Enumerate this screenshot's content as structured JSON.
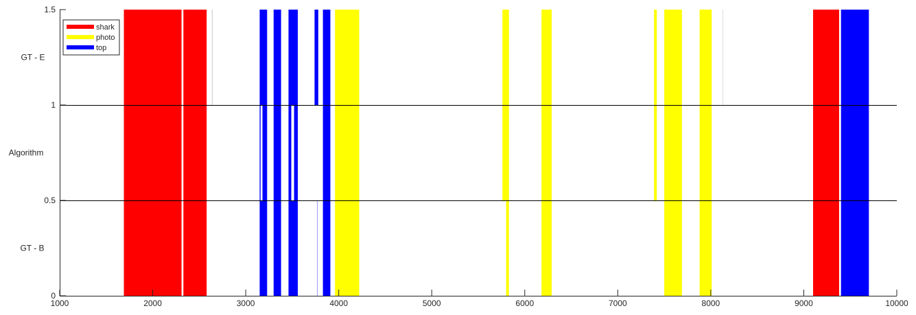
{
  "chart_data": {
    "type": "bar",
    "xlim": [
      1000,
      10000
    ],
    "ylim": [
      0,
      1.5
    ],
    "x_ticks": [
      "1000",
      "2000",
      "3000",
      "4000",
      "5000",
      "6000",
      "7000",
      "8000",
      "9000",
      "10000"
    ],
    "y_ticks": [
      "0",
      "0.5",
      "1",
      "1.5"
    ],
    "row_labels": [
      "GT - E",
      "Algorithm",
      "GT - B"
    ],
    "row_boundaries": [
      0.5,
      1
    ],
    "grid": false,
    "legend": {
      "placement": "top-left",
      "entries": [
        {
          "name": "shark",
          "color": "#ff0000"
        },
        {
          "name": "photo",
          "color": "#ffff00"
        },
        {
          "name": "top",
          "color": "#0000ff"
        }
      ]
    },
    "colors": {
      "shark": "#ff0000",
      "photo": "#ffff00",
      "top": "#0000ff"
    },
    "series": [
      {
        "name": "shark",
        "segments": [
          {
            "y0": 0,
            "y1": 1.5,
            "x0": 1690,
            "x1": 2310
          },
          {
            "y0": 0,
            "y1": 1.5,
            "x0": 2330,
            "x1": 2580
          },
          {
            "y0": 0,
            "y1": 1.5,
            "x0": 9100,
            "x1": 9380
          }
        ]
      },
      {
        "name": "photo",
        "segments": [
          {
            "y0": 0,
            "y1": 1.5,
            "x0": 3960,
            "x1": 4010
          },
          {
            "y0": 0,
            "y1": 1.5,
            "x0": 4010,
            "x1": 4220
          },
          {
            "y0": 0.5,
            "y1": 1.5,
            "x0": 5760,
            "x1": 5830
          },
          {
            "y0": 0,
            "y1": 0.5,
            "x0": 5800,
            "x1": 5830
          },
          {
            "y0": 0,
            "y1": 1.5,
            "x0": 6180,
            "x1": 6290
          },
          {
            "y0": 0.5,
            "y1": 1.5,
            "x0": 7390,
            "x1": 7420
          },
          {
            "y0": 0,
            "y1": 1.5,
            "x0": 7500,
            "x1": 7690
          },
          {
            "y0": 0,
            "y1": 1.5,
            "x0": 7880,
            "x1": 8010
          }
        ]
      },
      {
        "name": "top",
        "segments": [
          {
            "y0": 0,
            "y1": 1.5,
            "x0": 3150,
            "x1": 3230
          },
          {
            "y0": 0,
            "y1": 1.5,
            "x0": 3300,
            "x1": 3380
          },
          {
            "y0": 0,
            "y1": 1.5,
            "x0": 3460,
            "x1": 3560
          },
          {
            "y0": 1,
            "y1": 1.5,
            "x0": 3740,
            "x1": 3780
          },
          {
            "y0": 0,
            "y1": 1.5,
            "x0": 3830,
            "x1": 3910
          },
          {
            "y0": 0,
            "y1": 1.5,
            "x0": 9400,
            "x1": 9700
          }
        ]
      }
    ],
    "gaps": [
      {
        "y0": 0.5,
        "y1": 1,
        "x0": 3160,
        "x1": 3180
      },
      {
        "y0": 0.5,
        "y1": 1,
        "x0": 3490,
        "x1": 3520
      }
    ],
    "thin_lines": [
      {
        "x": 2640,
        "y0": 1,
        "y1": 1.5,
        "color": "#c8c8c8"
      },
      {
        "x": 3770,
        "y0": 0,
        "y1": 0.5,
        "color": "#9a9aff"
      },
      {
        "x": 8130,
        "y0": 1,
        "y1": 1.5,
        "color": "#e0e0e0"
      }
    ]
  }
}
